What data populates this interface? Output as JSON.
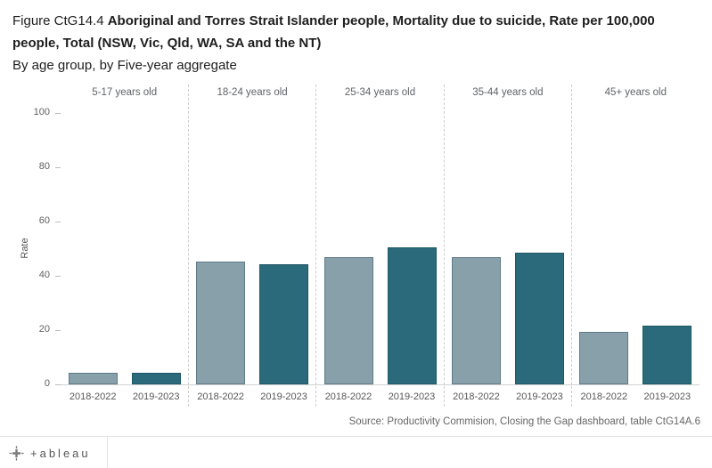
{
  "title": {
    "prefix": "Figure CtG14.4 ",
    "main": "Aboriginal and Torres Strait Islander people, Mortality due to suicide, Rate per 100,000 people, Total (NSW, Vic, Qld, WA, SA and the NT)",
    "subtitle": "By age group, by Five-year aggregate"
  },
  "source": "Source: Productivity Commision, Closing the Gap dashboard, table CtG14A.6",
  "footer": {
    "brand": "+ableau"
  },
  "chart_data": {
    "type": "bar",
    "title": "Aboriginal and Torres Strait Islander people, Mortality due to suicide, Rate per 100,000 people, Total (NSW, Vic, Qld, WA, SA and the NT)",
    "subtitle": "By age group, by Five-year aggregate",
    "panels": [
      "5-17 years old",
      "18-24 years old",
      "25-34 years old",
      "35-44 years old",
      "45+ years old"
    ],
    "categories": [
      "2018-2022",
      "2019-2023"
    ],
    "series": [
      {
        "name": "2018-2022",
        "color": "#87a0aa",
        "border": "#5e7b86",
        "values": [
          4.3,
          45.4,
          47.0,
          47.0,
          19.5
        ]
      },
      {
        "name": "2019-2023",
        "color": "#2b6a7a",
        "border": "#1d5766",
        "values": [
          4.3,
          44.2,
          50.4,
          48.4,
          21.8
        ]
      }
    ],
    "xlabel": "",
    "ylabel": "Rate",
    "yticks": [
      0,
      20,
      40,
      60,
      80,
      100
    ],
    "ylim": [
      0,
      100
    ],
    "grid": false,
    "legend": "none"
  },
  "colors": {
    "bar_light": "#87a0aa",
    "bar_dark": "#2b6a7a",
    "axis_text": "#606060",
    "separator": "#cdcdcd",
    "baseline": "#d2d2d2"
  }
}
